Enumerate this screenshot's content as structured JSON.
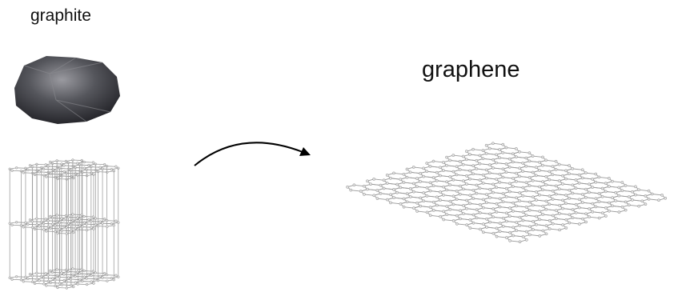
{
  "graphite": {
    "label": "graphite"
  },
  "graphene": {
    "label": "graphene"
  }
}
